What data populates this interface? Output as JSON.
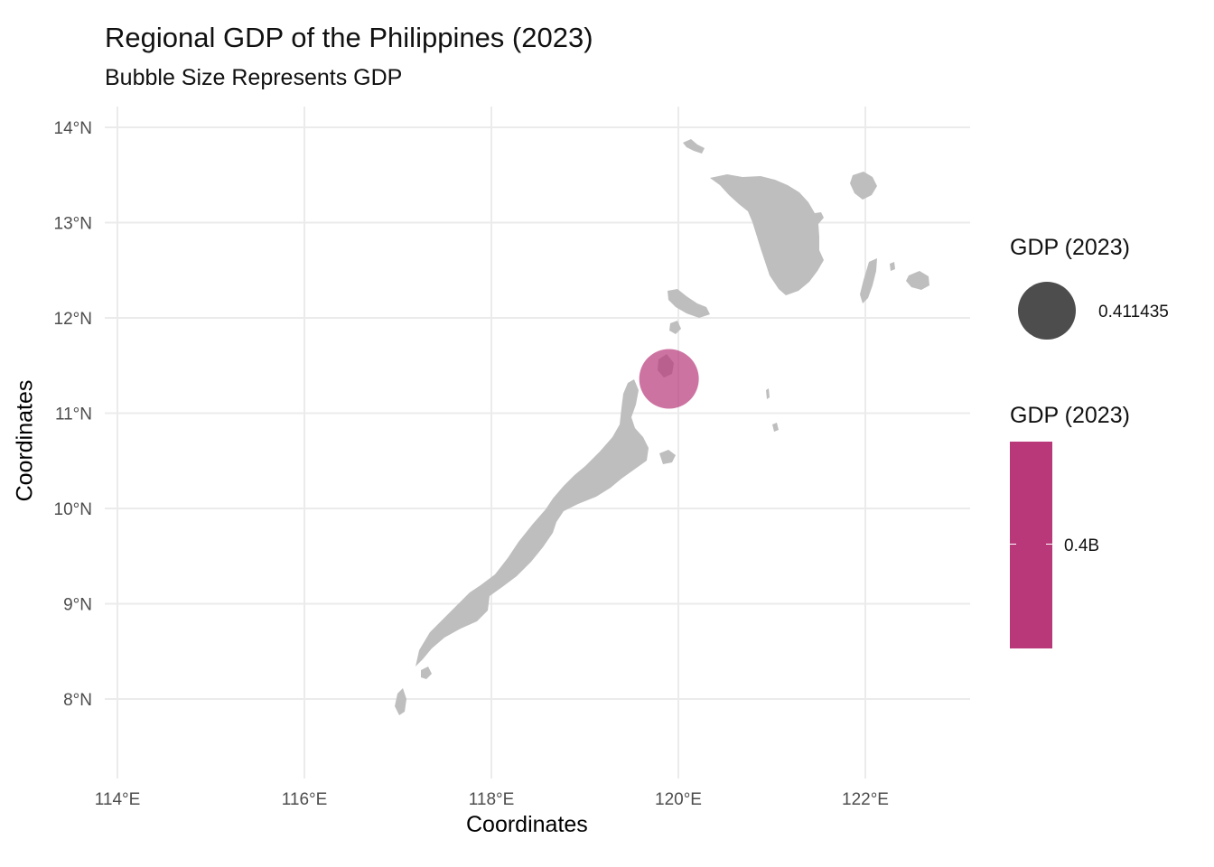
{
  "chart_data": {
    "type": "map-bubble",
    "title": "Regional GDP of the Philippines (2023)",
    "subtitle": "Bubble Size Represents GDP",
    "xlabel": "Coordinates",
    "ylabel": "Coordinates",
    "xlim": [
      113.0,
      123.5
    ],
    "ylim": [
      7.2,
      14.2
    ],
    "x_ticks": [
      {
        "value": 114,
        "label": "114°E"
      },
      {
        "value": 116,
        "label": "116°E"
      },
      {
        "value": 118,
        "label": "118°E"
      },
      {
        "value": 120,
        "label": "120°E"
      },
      {
        "value": 122,
        "label": "122°E"
      }
    ],
    "y_ticks": [
      {
        "value": 8,
        "label": "8°N"
      },
      {
        "value": 9,
        "label": "9°N"
      },
      {
        "value": 10,
        "label": "10°N"
      },
      {
        "value": 11,
        "label": "11°N"
      },
      {
        "value": 12,
        "label": "12°N"
      },
      {
        "value": 13,
        "label": "13°N"
      },
      {
        "value": 14,
        "label": "14°N"
      }
    ],
    "grid": true,
    "land_color": "#bebebe",
    "points": [
      {
        "lon": 119.9,
        "lat": 11.36,
        "gdp": 0.411435,
        "color": "#b8387a"
      }
    ],
    "legend_size": {
      "title": "GDP (2023)",
      "label": "0.411435",
      "color": "#4d4d4d"
    },
    "legend_color": {
      "title": "GDP (2023)",
      "label": "0.4B",
      "color": "#b8387a"
    }
  }
}
